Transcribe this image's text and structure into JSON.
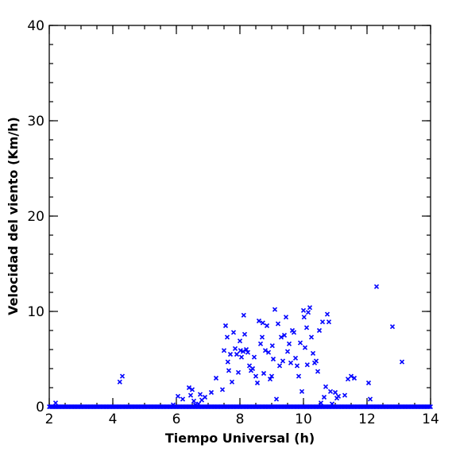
{
  "chart_data": {
    "type": "scatter",
    "xlabel": "Tiempo Universal (h)",
    "ylabel": "Velocidad del viento (Km/h)",
    "xlim": [
      2,
      14
    ],
    "ylim": [
      0,
      40
    ],
    "x_ticks": [
      2,
      4,
      6,
      8,
      10,
      12,
      14
    ],
    "y_ticks": [
      0,
      10,
      20,
      30,
      40
    ],
    "x_minor_step": 0.5,
    "y_minor_step": 2,
    "grid": false,
    "marker": "x",
    "series": [
      {
        "color": "#0000ff",
        "x": [
          2.2,
          4.22,
          4.3,
          5.9,
          6.05,
          6.2,
          6.4,
          6.45,
          6.5,
          6.55,
          6.6,
          6.7,
          6.75,
          6.8,
          6.9,
          7.1,
          7.25,
          7.45,
          7.5,
          7.55,
          7.6,
          7.62,
          7.65,
          7.7,
          7.75,
          7.8,
          7.85,
          7.9,
          7.95,
          8.0,
          8.02,
          8.05,
          8.1,
          8.12,
          8.15,
          8.2,
          8.25,
          8.3,
          8.35,
          8.4,
          8.45,
          8.5,
          8.55,
          8.6,
          8.65,
          8.7,
          8.72,
          8.75,
          8.8,
          8.85,
          8.9,
          8.95,
          9.0,
          9.02,
          9.05,
          9.1,
          9.15,
          9.2,
          9.25,
          9.3,
          9.35,
          9.4,
          9.45,
          9.5,
          9.55,
          9.6,
          9.65,
          9.7,
          9.75,
          9.8,
          9.85,
          9.9,
          9.95,
          10.0,
          10.02,
          10.05,
          10.1,
          10.12,
          10.15,
          10.2,
          10.25,
          10.3,
          10.35,
          10.4,
          10.45,
          10.5,
          10.55,
          10.6,
          10.65,
          10.7,
          10.75,
          10.8,
          10.85,
          10.9,
          11.0,
          11.05,
          11.1,
          11.3,
          11.4,
          11.5,
          11.6,
          12.05,
          12.1,
          12.3,
          12.8,
          13.1
        ],
        "y": [
          0.4,
          2.6,
          3.2,
          0.2,
          1.1,
          0.8,
          2.0,
          1.2,
          1.8,
          0.6,
          0.2,
          0.3,
          1.3,
          0.7,
          1.0,
          1.5,
          3.0,
          1.8,
          5.9,
          8.5,
          7.3,
          4.7,
          3.8,
          5.5,
          2.6,
          7.8,
          6.1,
          5.5,
          3.6,
          6.9,
          5.9,
          5.2,
          5.8,
          9.6,
          7.6,
          6.0,
          5.7,
          4.3,
          3.8,
          4.0,
          5.2,
          3.2,
          2.5,
          9.0,
          6.6,
          7.3,
          8.8,
          3.5,
          5.9,
          8.5,
          5.7,
          2.9,
          3.2,
          6.4,
          5.0,
          10.2,
          0.8,
          8.7,
          4.3,
          7.3,
          4.8,
          7.5,
          9.4,
          5.8,
          6.6,
          4.6,
          8.0,
          7.8,
          5.1,
          4.3,
          3.2,
          6.7,
          1.6,
          10.1,
          9.4,
          6.2,
          8.3,
          4.4,
          9.9,
          10.4,
          7.3,
          5.6,
          4.6,
          4.8,
          3.7,
          8.0,
          0.4,
          8.9,
          1.0,
          2.1,
          9.7,
          8.9,
          1.6,
          0.3,
          1.5,
          0.9,
          1.1,
          1.2,
          2.9,
          3.2,
          3.0,
          2.5,
          0.8,
          12.6,
          8.4,
          4.7
        ]
      }
    ]
  }
}
